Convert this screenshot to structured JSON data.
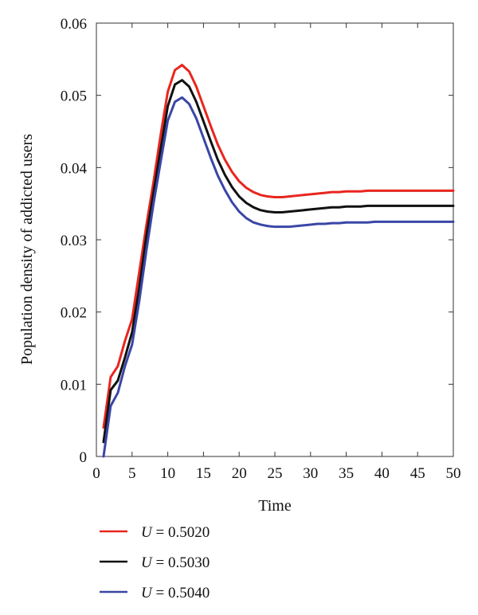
{
  "chart_data": {
    "type": "line",
    "title": "",
    "xlabel": "Time",
    "ylabel": "Population density of addicted users",
    "xlim": [
      0,
      50
    ],
    "ylim": [
      0,
      0.06
    ],
    "xticks": [
      0,
      5,
      10,
      15,
      20,
      25,
      30,
      35,
      40,
      45,
      50
    ],
    "yticks": [
      0,
      0.01,
      0.02,
      0.03,
      0.04,
      0.05,
      0.06
    ],
    "xtick_labels": [
      "0",
      "5",
      "10",
      "15",
      "20",
      "25",
      "30",
      "35",
      "40",
      "45",
      "50"
    ],
    "ytick_labels": [
      "0",
      "0.01",
      "0.02",
      "0.03",
      "0.04",
      "0.05",
      "0.06"
    ],
    "grid": false,
    "legend_position": "bottom",
    "x": [
      1,
      2,
      3,
      4,
      5,
      6,
      7,
      8,
      9,
      10,
      11,
      12,
      13,
      14,
      15,
      16,
      17,
      18,
      19,
      20,
      21,
      22,
      23,
      24,
      25,
      26,
      27,
      28,
      29,
      30,
      31,
      32,
      33,
      34,
      35,
      36,
      37,
      38,
      39,
      40,
      41,
      42,
      43,
      44,
      45,
      46,
      47,
      48,
      49,
      50
    ],
    "series": [
      {
        "name": "U = 0.5020",
        "legend_var": "U",
        "legend_value": "= 0.5020",
        "color": "#e8261f",
        "values": [
          0.004,
          0.011,
          0.0125,
          0.016,
          0.019,
          0.0255,
          0.032,
          0.038,
          0.0445,
          0.0505,
          0.0535,
          0.0542,
          0.0533,
          0.0512,
          0.0485,
          0.0458,
          0.0432,
          0.0411,
          0.0394,
          0.0381,
          0.0372,
          0.0366,
          0.0362,
          0.036,
          0.0359,
          0.0359,
          0.036,
          0.0361,
          0.0362,
          0.0363,
          0.0364,
          0.0365,
          0.0366,
          0.0366,
          0.0367,
          0.0367,
          0.0367,
          0.0368,
          0.0368,
          0.0368,
          0.0368,
          0.0368,
          0.0368,
          0.0368,
          0.0368,
          0.0368,
          0.0368,
          0.0368,
          0.0368,
          0.0368
        ]
      },
      {
        "name": "U = 0.5030",
        "legend_var": "U",
        "legend_value": "= 0.5030",
        "color": "#111111",
        "values": [
          0.002,
          0.0092,
          0.0105,
          0.0137,
          0.0172,
          0.0233,
          0.0305,
          0.0365,
          0.0425,
          0.0485,
          0.0515,
          0.0521,
          0.0512,
          0.0491,
          0.0464,
          0.0437,
          0.0411,
          0.039,
          0.0373,
          0.036,
          0.0351,
          0.0345,
          0.0341,
          0.0339,
          0.0338,
          0.0338,
          0.0339,
          0.034,
          0.0341,
          0.0342,
          0.0343,
          0.0344,
          0.0345,
          0.0345,
          0.0346,
          0.0346,
          0.0346,
          0.0347,
          0.0347,
          0.0347,
          0.0347,
          0.0347,
          0.0347,
          0.0347,
          0.0347,
          0.0347,
          0.0347,
          0.0347,
          0.0347,
          0.0347
        ]
      },
      {
        "name": "U = 0.5040",
        "legend_var": "U",
        "legend_value": "= 0.5040",
        "color": "#3a46a6",
        "values": [
          0.0,
          0.007,
          0.0088,
          0.0125,
          0.0155,
          0.0215,
          0.0285,
          0.035,
          0.0408,
          0.0465,
          0.0491,
          0.0497,
          0.0488,
          0.0468,
          0.0441,
          0.0414,
          0.0389,
          0.0369,
          0.0352,
          0.0339,
          0.033,
          0.0324,
          0.0321,
          0.0319,
          0.0318,
          0.0318,
          0.0318,
          0.0319,
          0.032,
          0.0321,
          0.0322,
          0.0322,
          0.0323,
          0.0323,
          0.0324,
          0.0324,
          0.0324,
          0.0324,
          0.0325,
          0.0325,
          0.0325,
          0.0325,
          0.0325,
          0.0325,
          0.0325,
          0.0325,
          0.0325,
          0.0325,
          0.0325,
          0.0325
        ]
      }
    ]
  }
}
